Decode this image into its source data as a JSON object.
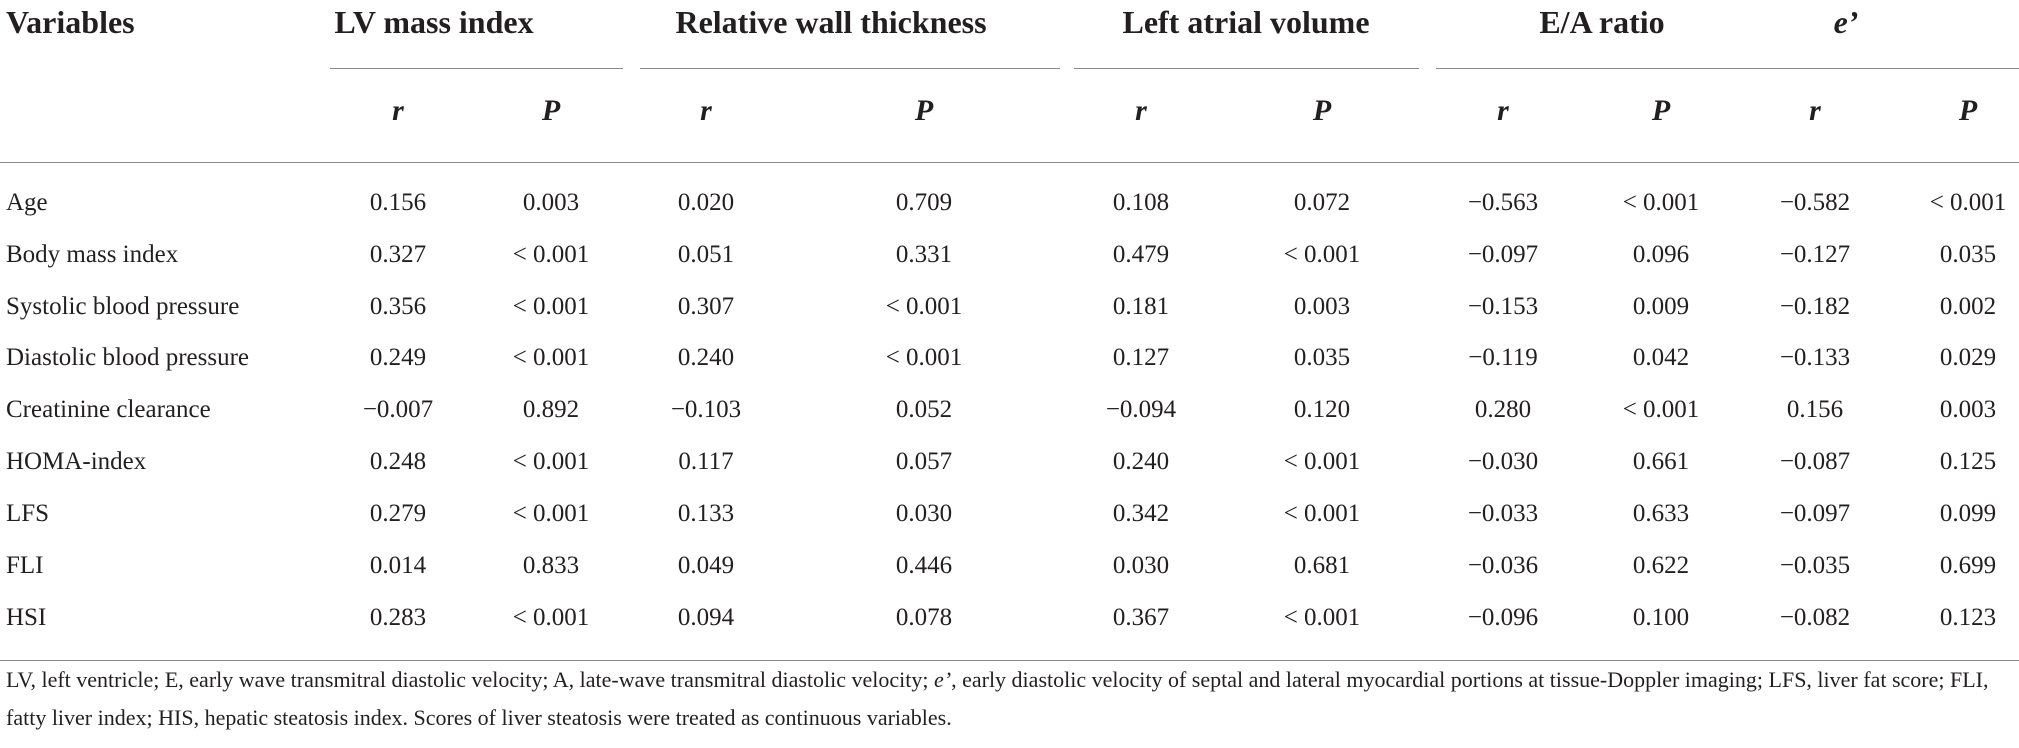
{
  "table": {
    "row_header": "Variables",
    "groups": [
      "LV mass index",
      "Relative wall thickness",
      "Left atrial volume",
      "E/A ratio",
      "e’"
    ],
    "subheaders": [
      "r",
      "P"
    ],
    "rows": [
      {
        "label": "Age",
        "cells": [
          "0.156",
          "0.003",
          "0.020",
          "0.709",
          "0.108",
          "0.072",
          "−0.563",
          "< 0.001",
          "−0.582",
          "< 0.001"
        ]
      },
      {
        "label": "Body mass index",
        "cells": [
          "0.327",
          "< 0.001",
          "0.051",
          "0.331",
          "0.479",
          "< 0.001",
          "−0.097",
          "0.096",
          "−0.127",
          "0.035"
        ]
      },
      {
        "label": "Systolic blood pressure",
        "cells": [
          "0.356",
          "< 0.001",
          "0.307",
          "< 0.001",
          "0.181",
          "0.003",
          "−0.153",
          "0.009",
          "−0.182",
          "0.002"
        ]
      },
      {
        "label": "Diastolic blood pressure",
        "cells": [
          "0.249",
          "< 0.001",
          "0.240",
          "< 0.001",
          "0.127",
          "0.035",
          "−0.119",
          "0.042",
          "−0.133",
          "0.029"
        ]
      },
      {
        "label": "Creatinine clearance",
        "cells": [
          "−0.007",
          "0.892",
          "−0.103",
          "0.052",
          "−0.094",
          "0.120",
          "0.280",
          "< 0.001",
          "0.156",
          "0.003"
        ]
      },
      {
        "label": "HOMA-index",
        "cells": [
          "0.248",
          "< 0.001",
          "0.117",
          "0.057",
          "0.240",
          "< 0.001",
          "−0.030",
          "0.661",
          "−0.087",
          "0.125"
        ]
      },
      {
        "label": "LFS",
        "cells": [
          "0.279",
          "< 0.001",
          "0.133",
          "0.030",
          "0.342",
          "< 0.001",
          "−0.033",
          "0.633",
          "−0.097",
          "0.099"
        ]
      },
      {
        "label": "FLI",
        "cells": [
          "0.014",
          "0.833",
          "0.049",
          "0.446",
          "0.030",
          "0.681",
          "−0.036",
          "0.622",
          "−0.035",
          "0.699"
        ]
      },
      {
        "label": "HSI",
        "cells": [
          "0.283",
          "< 0.001",
          "0.094",
          "0.078",
          "0.367",
          "< 0.001",
          "−0.096",
          "0.100",
          "−0.082",
          "0.123"
        ]
      }
    ]
  },
  "footnote": {
    "pre": "LV, left ventricle; E, early wave transmitral diastolic velocity; A, late-wave transmitral diastolic velocity; ",
    "emph": "e’",
    "post": ", early diastolic velocity of septal and lateral myocardial portions at tissue-Doppler imaging; LFS, liver fat score; FLI, fatty liver index; HIS, hepatic steatosis index. Scores of liver steatosis were treated as continuous variables."
  }
}
